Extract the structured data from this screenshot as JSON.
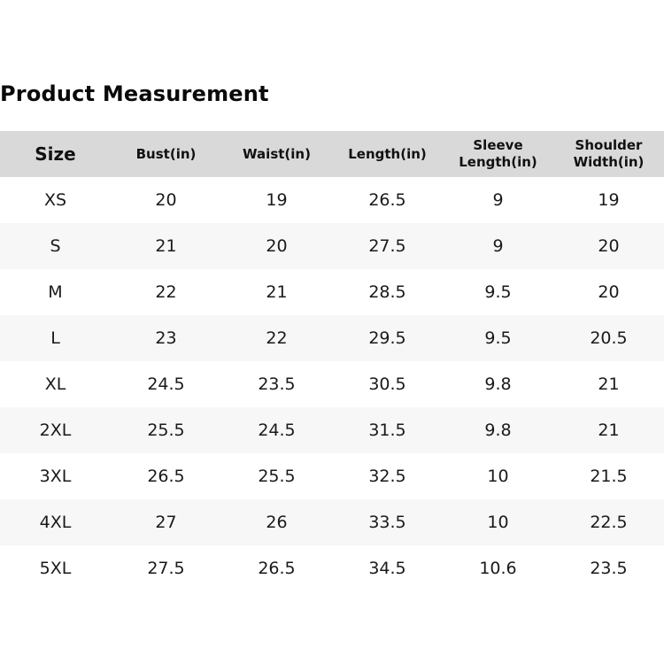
{
  "title": "Product Measurement",
  "headers": [
    "Size",
    "Bust(in)",
    "Waist(in)",
    "Length(in)",
    "Sleeve Length(in)",
    "Shoulder Width(in)"
  ],
  "header_lines": [
    [
      "Size"
    ],
    [
      "Bust(in)"
    ],
    [
      "Waist(in)"
    ],
    [
      "Length(in)"
    ],
    [
      "Sleeve",
      "Length(in)"
    ],
    [
      "Shoulder",
      "Width(in)"
    ]
  ],
  "rows": [
    [
      "XS",
      "20",
      "19",
      "26.5",
      "9",
      "19"
    ],
    [
      "S",
      "21",
      "20",
      "27.5",
      "9",
      "20"
    ],
    [
      "M",
      "22",
      "21",
      "28.5",
      "9.5",
      "20"
    ],
    [
      "L",
      "23",
      "22",
      "29.5",
      "9.5",
      "20.5"
    ],
    [
      "XL",
      "24.5",
      "23.5",
      "30.5",
      "9.8",
      "21"
    ],
    [
      "2XL",
      "25.5",
      "24.5",
      "31.5",
      "9.8",
      "21"
    ],
    [
      "3XL",
      "26.5",
      "25.5",
      "32.5",
      "10",
      "21.5"
    ],
    [
      "4XL",
      "27",
      "26",
      "33.5",
      "10",
      "22.5"
    ],
    [
      "5XL",
      "27.5",
      "26.5",
      "34.5",
      "10.6",
      "23.5"
    ]
  ],
  "colors": {
    "header_bg": "#d9d9d9",
    "alt_row_bg": "#f7f7f7",
    "row_bg": "#ffffff",
    "text": "#111111"
  }
}
